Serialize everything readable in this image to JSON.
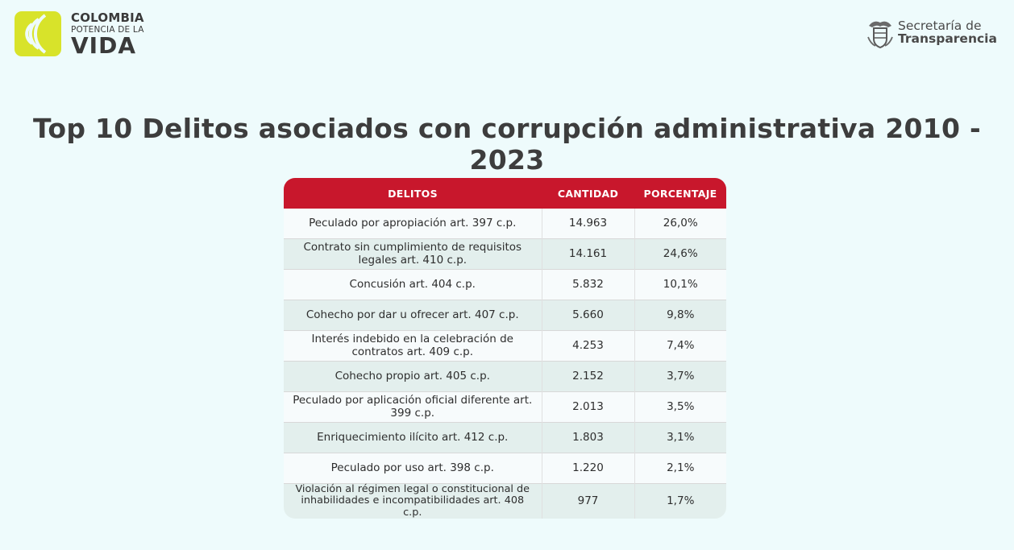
{
  "header": {
    "left_logo": {
      "line1": "COLOMBIA",
      "line2": "POTENCIA DE LA",
      "line3": "VIDA",
      "badge_color": "#d8e32a"
    },
    "right_logo": {
      "line1": "Secretaría de",
      "line2": "Transparencia",
      "icon": "coat-of-arms-icon"
    }
  },
  "title": "Top 10 Delitos asociados con corrupción administrativa 2010 - 2023",
  "table": {
    "headers": [
      "DELITOS",
      "CANTIDAD",
      "PORCENTAJE"
    ],
    "header_color": "#c8172c",
    "rows": [
      {
        "delito": "Peculado por apropiación art. 397 c.p.",
        "cantidad": "14.963",
        "porcentaje": "26,0%"
      },
      {
        "delito": "Contrato sin cumplimiento de requisitos legales art. 410 c.p.",
        "cantidad": "14.161",
        "porcentaje": "24,6%"
      },
      {
        "delito": "Concusión art. 404 c.p.",
        "cantidad": "5.832",
        "porcentaje": "10,1%"
      },
      {
        "delito": "Cohecho por dar u ofrecer art. 407 c.p.",
        "cantidad": "5.660",
        "porcentaje": "9,8%"
      },
      {
        "delito": "Interés indebido en la celebración de contratos art. 409 c.p.",
        "cantidad": "4.253",
        "porcentaje": "7,4%"
      },
      {
        "delito": "Cohecho propio art. 405 c.p.",
        "cantidad": "2.152",
        "porcentaje": "3,7%"
      },
      {
        "delito": "Peculado por aplicación oficial diferente art. 399 c.p.",
        "cantidad": "2.013",
        "porcentaje": "3,5%"
      },
      {
        "delito": "Enriquecimiento ilícito art. 412 c.p.",
        "cantidad": "1.803",
        "porcentaje": "3,1%"
      },
      {
        "delito": "Peculado por uso art. 398 c.p.",
        "cantidad": "1.220",
        "porcentaje": "2,1%"
      },
      {
        "delito": "Violación al régimen legal o constitucional de inhabilidades e incompatibilidades art. 408 c.p.",
        "cantidad": "977",
        "porcentaje": "1,7%"
      }
    ]
  }
}
